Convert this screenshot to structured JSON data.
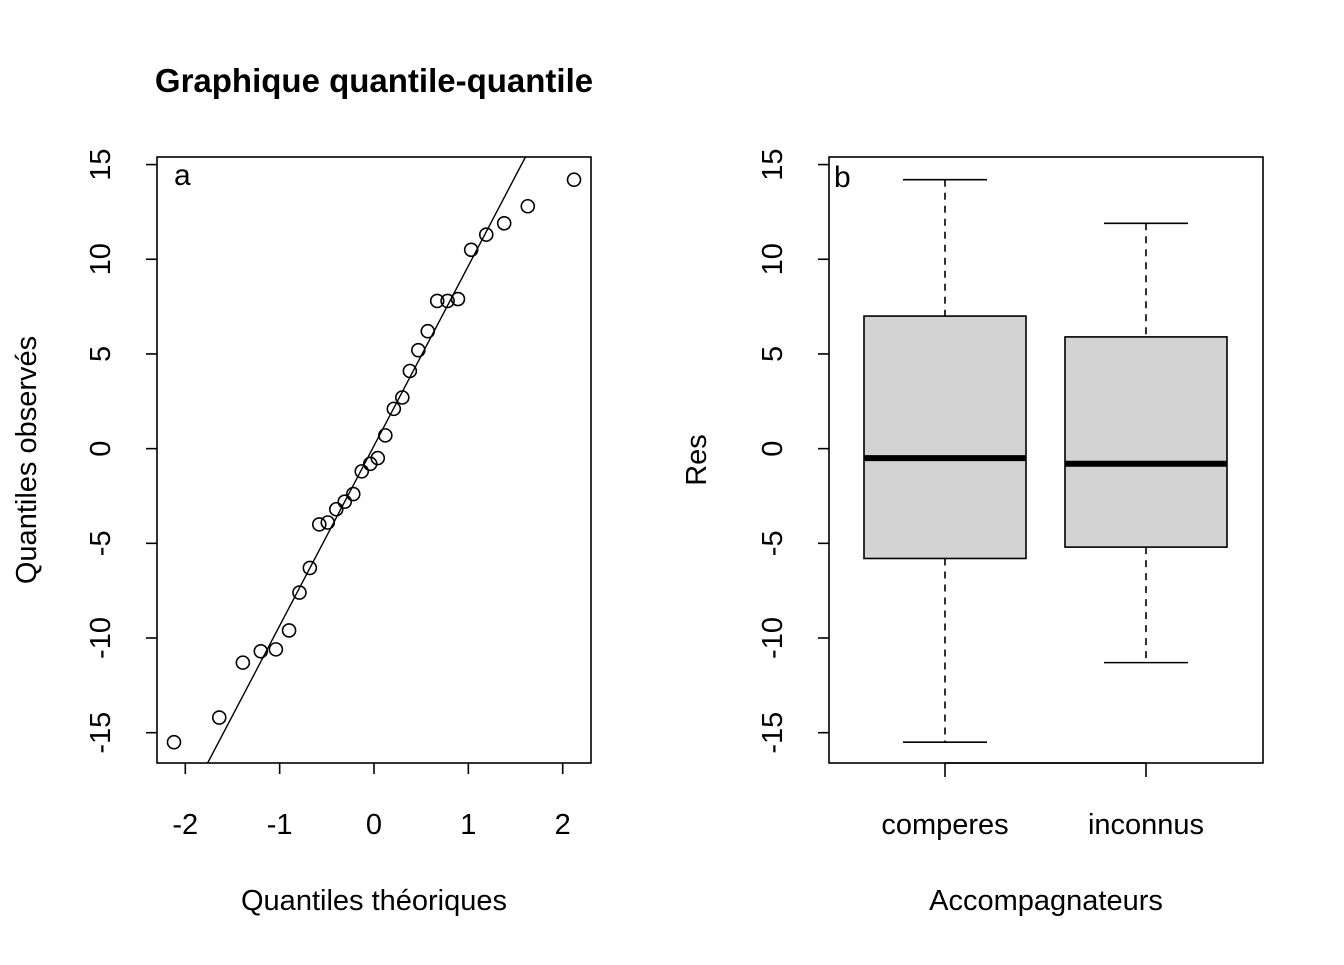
{
  "chart_data": [
    {
      "type": "scatter",
      "panel_label": "a",
      "title": "Graphique quantile-quantile",
      "xlabel": "Quantiles théoriques",
      "ylabel": "Quantiles observés",
      "xlim": [
        -2.3,
        2.3
      ],
      "ylim": [
        -16.6,
        15.4
      ],
      "x_ticks": [
        -2,
        -1,
        0,
        1,
        2
      ],
      "x_tick_labels": [
        "-2",
        "-1",
        "0",
        "1",
        "2"
      ],
      "y_ticks": [
        -15,
        -10,
        -5,
        0,
        5,
        10,
        15
      ],
      "y_tick_labels": [
        "-15",
        "-10",
        "-5",
        "0",
        "5",
        "10",
        "15"
      ],
      "grid": false,
      "points": {
        "x": [
          -2.12,
          -1.64,
          -1.39,
          -1.2,
          -1.04,
          -0.9,
          -0.79,
          -0.68,
          -0.58,
          -0.49,
          -0.4,
          -0.31,
          -0.22,
          -0.13,
          -0.04,
          0.04,
          0.12,
          0.21,
          0.3,
          0.38,
          0.47,
          0.57,
          0.67,
          0.78,
          0.89,
          1.03,
          1.19,
          1.38,
          1.63,
          2.12
        ],
        "y": [
          -15.5,
          -14.2,
          -11.3,
          -10.7,
          -10.6,
          -9.6,
          -7.6,
          -6.3,
          -4.0,
          -3.9,
          -3.2,
          -2.8,
          -2.4,
          -1.2,
          -0.8,
          -0.5,
          0.7,
          2.1,
          2.7,
          4.1,
          5.2,
          6.2,
          7.8,
          7.8,
          7.9,
          10.5,
          11.3,
          11.9,
          12.8,
          14.2
        ]
      },
      "reference_line": {
        "intercept": 0.15,
        "slope": 9.5
      }
    },
    {
      "type": "box",
      "panel_label": "b",
      "title": "",
      "xlabel": "Accompagnateurs",
      "ylabel": "Res",
      "ylim": [
        -16.6,
        15.4
      ],
      "y_ticks": [
        -15,
        -10,
        -5,
        0,
        5,
        10,
        15
      ],
      "y_tick_labels": [
        "-15",
        "-10",
        "-5",
        "0",
        "5",
        "10",
        "15"
      ],
      "categories": [
        "comperes",
        "inconnus"
      ],
      "boxes": [
        {
          "whisker_low": -15.5,
          "q1": -5.8,
          "median": -0.5,
          "q3": 7.0,
          "whisker_high": 14.2
        },
        {
          "whisker_low": -11.3,
          "q1": -5.2,
          "median": -0.8,
          "q3": 5.9,
          "whisker_high": 11.9
        }
      ],
      "box_fill": "#d3d3d3",
      "grid": false
    }
  ]
}
